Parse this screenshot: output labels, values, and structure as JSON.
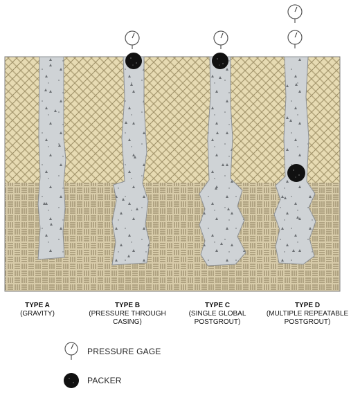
{
  "types": [
    {
      "title": "TYPE A",
      "subtitle": "(GRAVITY)"
    },
    {
      "title": "TYPE B",
      "subtitle": "(PRESSURE THROUGH CASING)"
    },
    {
      "title": "TYPE C",
      "subtitle": "(SINGLE GLOBAL POSTGROUT)"
    },
    {
      "title": "TYPE D",
      "subtitle": "(MULTIPLE REPEATABLE POSTGROUT)"
    }
  ],
  "legend": {
    "pressure_gage": "PRESSURE GAGE",
    "packer": "PACKER"
  },
  "colors": {
    "upper_soil": "#e7dbb3",
    "lower_soil": "#d8ccaa",
    "grout": "#cfd3d6",
    "packer": "#111111"
  }
}
